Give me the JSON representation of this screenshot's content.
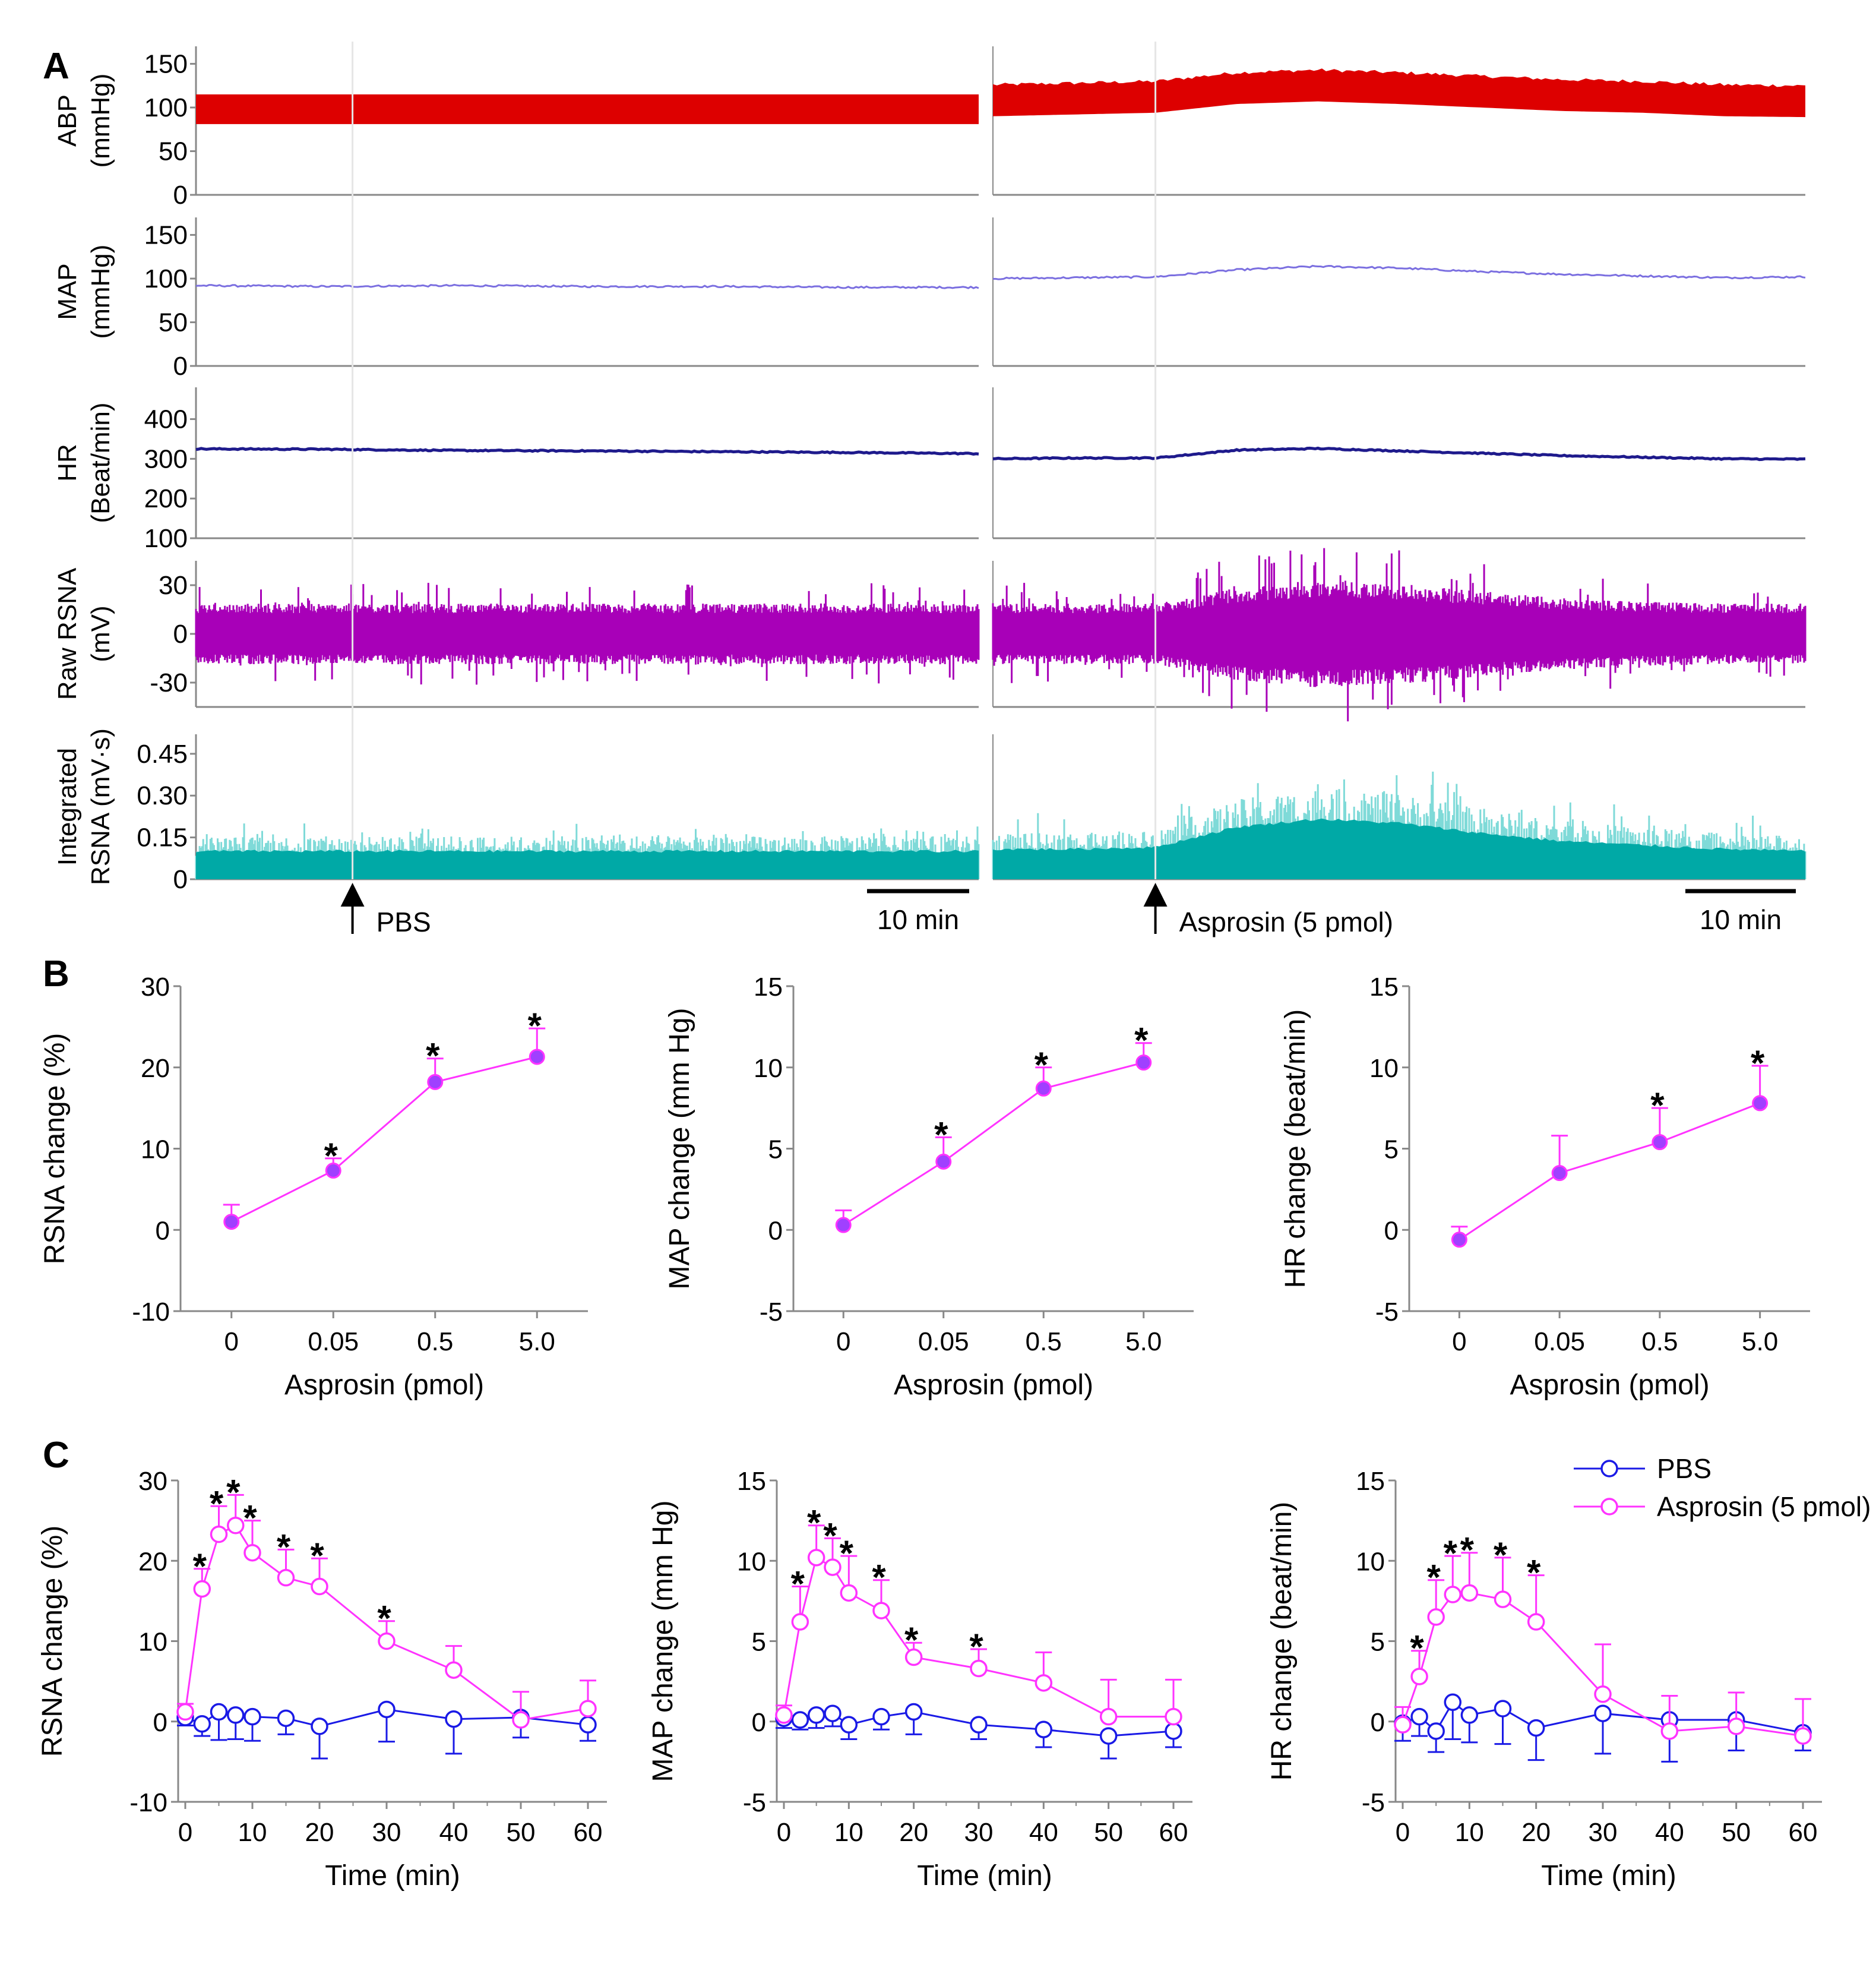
{
  "figure": {
    "panel_letters": [
      "A",
      "B",
      "C"
    ],
    "colors": {
      "abp": "#dd0000",
      "map": "#7b6fe0",
      "hr": "#1e1a8c",
      "raw_rsna": "#a800b8",
      "integrated_rsna": "#00a9a6",
      "asprosin": "#ff33ff",
      "asprosin_marker_fill": "#a040ff",
      "pbs": "#1a1ae6",
      "axis": "#888888"
    }
  },
  "panel_a": {
    "traces": [
      {
        "id": "abp",
        "ylabels": [
          "ABP",
          "(mmHg)"
        ],
        "ticks": [
          "0",
          "50",
          "100",
          "150"
        ],
        "ymin": 0,
        "ymax": 170,
        "left": {
          "center": 98,
          "half_width": 17
        },
        "right": {
          "baseline": [
            118,
            120,
            122,
            132,
            135,
            132,
            128,
            124,
            122,
            118,
            117
          ],
          "half_width": 18
        }
      },
      {
        "id": "map",
        "ylabels": [
          "MAP",
          "(mmHg)"
        ],
        "ticks": [
          "0",
          "50",
          "100",
          "150"
        ],
        "ymin": 0,
        "ymax": 170,
        "left": {
          "baseline": [
            92,
            91,
            92,
            91,
            91,
            90,
            90
          ]
        },
        "right": {
          "baseline": [
            100,
            101,
            102,
            110,
            114,
            112,
            108,
            105,
            103,
            101,
            102
          ]
        }
      },
      {
        "id": "hr",
        "ylabels": [
          "HR",
          "(Beat/min)"
        ],
        "ticks": [
          "100",
          "200",
          "300",
          "400"
        ],
        "ymin": 100,
        "ymax": 480,
        "left": {
          "baseline": [
            325,
            324,
            321,
            320,
            318,
            316,
            313
          ]
        },
        "right": {
          "baseline": [
            300,
            302,
            302,
            322,
            326,
            320,
            314,
            308,
            304,
            300,
            299
          ]
        }
      },
      {
        "id": "raw_rsna",
        "ylabels": [
          "Raw RSNA",
          "(mV)"
        ],
        "ticks": [
          "-30",
          "0",
          "30"
        ],
        "ymin": -45,
        "ymax": 45,
        "left": {
          "amplitude": [
            17,
            17,
            17,
            17,
            17,
            17,
            17
          ]
        },
        "right": {
          "amplitude": [
            17,
            17,
            17,
            26,
            30,
            28,
            24,
            20,
            18,
            17,
            17
          ]
        }
      },
      {
        "id": "integrated_rsna",
        "ylabels": [
          "Integrated",
          "RSNA (mV·s)"
        ],
        "ticks": [
          "0",
          "0.15",
          "0.30",
          "0.45"
        ],
        "ymin": 0,
        "ymax": 0.52,
        "left": {
          "level": [
            0.14,
            0.14,
            0.14,
            0.14,
            0.14,
            0.14,
            0.14
          ]
        },
        "right": {
          "level": [
            0.15,
            0.15,
            0.16,
            0.26,
            0.3,
            0.28,
            0.23,
            0.19,
            0.17,
            0.15,
            0.14
          ]
        }
      }
    ],
    "events": [
      {
        "label": "PBS",
        "column": "left",
        "at_fraction": 0.2
      },
      {
        "label": "Asprosin (5 pmol)",
        "column": "right",
        "at_fraction": 0.2
      }
    ],
    "scale_bar_label": "10 min"
  },
  "chart_data": [
    {
      "type": "line",
      "panel": "B",
      "categories": [
        "0",
        "0.05",
        "0.5",
        "5.0"
      ],
      "series": [
        {
          "name": "Asprosin",
          "values": [
            1,
            7.3,
            18.2,
            21.3
          ],
          "errors": [
            2.1,
            1.5,
            2.9,
            3.5
          ],
          "significant": [
            false,
            true,
            true,
            true
          ]
        }
      ],
      "xlabel": "Asprosin (pmol)",
      "ylabel": "RSNA change (%)",
      "ylim": [
        -10,
        30
      ],
      "yticks": [
        "-10",
        "0",
        "10",
        "20",
        "30"
      ]
    },
    {
      "type": "line",
      "panel": "B",
      "categories": [
        "0",
        "0.05",
        "0.5",
        "5.0"
      ],
      "series": [
        {
          "name": "Asprosin",
          "values": [
            0.3,
            4.2,
            8.7,
            10.3
          ],
          "errors": [
            0.9,
            1.5,
            1.3,
            1.2
          ],
          "significant": [
            false,
            true,
            true,
            true
          ]
        }
      ],
      "xlabel": "Asprosin (pmol)",
      "ylabel": "MAP change (mm Hg)",
      "ylim": [
        -5,
        15
      ],
      "yticks": [
        "-5",
        "0",
        "5",
        "10",
        "15"
      ]
    },
    {
      "type": "line",
      "panel": "B",
      "categories": [
        "0",
        "0.05",
        "0.5",
        "5.0"
      ],
      "series": [
        {
          "name": "Asprosin",
          "values": [
            -0.6,
            3.5,
            5.4,
            7.8
          ],
          "errors": [
            0.8,
            2.3,
            2.1,
            2.3
          ],
          "significant": [
            false,
            false,
            true,
            true
          ]
        }
      ],
      "xlabel": "Asprosin (pmol)",
      "ylabel": "HR change (beat/min)",
      "ylim": [
        -5,
        15
      ],
      "yticks": [
        "-5",
        "0",
        "5",
        "10",
        "15"
      ]
    },
    {
      "type": "line",
      "panel": "C",
      "x": [
        0,
        2.5,
        5,
        7.5,
        10,
        15,
        20,
        30,
        40,
        50,
        60
      ],
      "series": [
        {
          "name": "PBS",
          "values": [
            0.5,
            -0.3,
            1.2,
            0.8,
            0.6,
            0.4,
            -0.6,
            1.5,
            0.3,
            0.5,
            -0.4
          ],
          "errors": [
            1.0,
            1.5,
            3.5,
            3,
            3,
            2,
            4,
            4,
            4.3,
            2.5,
            2
          ]
        },
        {
          "name": "Asprosin (5 pmol)",
          "values": [
            1.2,
            16.5,
            23.3,
            24.4,
            21.0,
            17.9,
            16.8,
            10.0,
            6.4,
            0.2,
            1.6
          ],
          "errors": [
            1.0,
            2.5,
            3.5,
            3.8,
            4.0,
            3.5,
            3.5,
            2.5,
            3,
            3.5,
            3.5
          ],
          "significant": [
            false,
            true,
            true,
            true,
            true,
            true,
            true,
            true,
            false,
            false,
            false
          ]
        }
      ],
      "xlabel": "Time (min)",
      "ylabel": "RSNA change (%)",
      "xlim": [
        0,
        60
      ],
      "xticks": [
        "0",
        "10",
        "20",
        "30",
        "40",
        "50",
        "60"
      ],
      "ylim": [
        -10,
        30
      ],
      "yticks": [
        "-10",
        "0",
        "10",
        "20",
        "30"
      ]
    },
    {
      "type": "line",
      "panel": "C",
      "x": [
        0,
        2.5,
        5,
        7.5,
        10,
        15,
        20,
        30,
        40,
        50,
        60
      ],
      "series": [
        {
          "name": "PBS",
          "values": [
            0.2,
            0.1,
            0.4,
            0.5,
            -0.2,
            0.3,
            0.6,
            -0.2,
            -0.5,
            -0.9,
            -0.6
          ],
          "errors": [
            0.6,
            0.6,
            0.8,
            0.8,
            0.9,
            0.8,
            1.4,
            0.9,
            1.1,
            1.4,
            1.0
          ]
        },
        {
          "name": "Asprosin (5 pmol)",
          "values": [
            0.4,
            6.2,
            10.2,
            9.6,
            8.0,
            6.9,
            4.0,
            3.3,
            2.4,
            0.3,
            0.3
          ],
          "errors": [
            0.6,
            2.2,
            2.0,
            1.8,
            2.3,
            1.9,
            0.9,
            1.2,
            1.9,
            2.3,
            2.3
          ],
          "significant": [
            false,
            true,
            true,
            true,
            true,
            true,
            true,
            true,
            false,
            false,
            false
          ]
        }
      ],
      "xlabel": "Time (min)",
      "ylabel": "MAP change (mm Hg)",
      "xlim": [
        0,
        60
      ],
      "xticks": [
        "0",
        "10",
        "20",
        "30",
        "40",
        "50",
        "60"
      ],
      "ylim": [
        -5,
        15
      ],
      "yticks": [
        "-5",
        "0",
        "5",
        "10",
        "15"
      ]
    },
    {
      "type": "line",
      "panel": "C",
      "x": [
        0,
        2.5,
        5,
        7.5,
        10,
        15,
        20,
        30,
        40,
        50,
        60
      ],
      "series": [
        {
          "name": "PBS",
          "values": [
            -0.1,
            0.3,
            -0.6,
            1.2,
            0.4,
            0.8,
            -0.4,
            0.5,
            0.1,
            0.1,
            -0.7
          ],
          "errors": [
            1.1,
            1.2,
            1.3,
            2.3,
            1.7,
            2.2,
            2.0,
            2.5,
            2.6,
            1.9,
            1.1
          ]
        },
        {
          "name": "Asprosin (5 pmol)",
          "values": [
            -0.2,
            2.8,
            6.5,
            7.9,
            8.0,
            7.6,
            6.2,
            1.7,
            -0.6,
            -0.3,
            -0.9
          ],
          "errors": [
            1.1,
            1.6,
            2.3,
            2.4,
            2.5,
            2.6,
            2.9,
            3.1,
            2.2,
            2.1,
            2.3
          ],
          "significant": [
            false,
            true,
            true,
            true,
            true,
            true,
            true,
            false,
            false,
            false,
            false
          ]
        }
      ],
      "xlabel": "Time (min)",
      "ylabel": "HR change (beat/min)",
      "xlim": [
        0,
        60
      ],
      "xticks": [
        "0",
        "10",
        "20",
        "30",
        "40",
        "50",
        "60"
      ],
      "ylim": [
        -5,
        15
      ],
      "yticks": [
        "-5",
        "0",
        "5",
        "10",
        "15"
      ],
      "legend": {
        "position": "top-right",
        "entries": [
          "PBS",
          "Asprosin (5 pmol)"
        ]
      }
    }
  ]
}
